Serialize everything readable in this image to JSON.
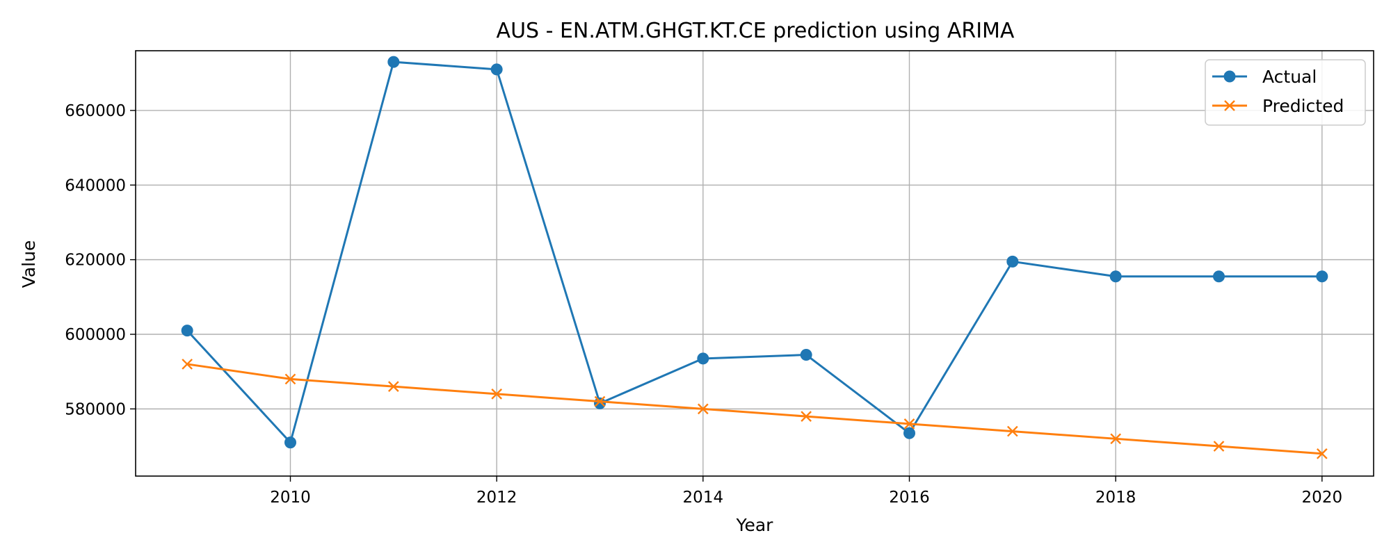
{
  "chart_data": {
    "type": "line",
    "title": "AUS - EN.ATM.GHGT.KT.CE prediction using ARIMA",
    "xlabel": "Year",
    "ylabel": "Value",
    "x": [
      2009,
      2010,
      2011,
      2012,
      2013,
      2014,
      2015,
      2016,
      2017,
      2018,
      2019,
      2020
    ],
    "xlim": [
      2008.5,
      2020.5
    ],
    "ylim": [
      562000,
      676000
    ],
    "x_ticks": [
      "2010",
      "2012",
      "2014",
      "2016",
      "2018",
      "2020"
    ],
    "y_ticks": [
      "580000",
      "600000",
      "620000",
      "640000",
      "660000"
    ],
    "grid": true,
    "legend_position": "top-right",
    "series": [
      {
        "name": "Actual",
        "marker": "circle",
        "color": "#1f77b4",
        "values": [
          601000,
          571000,
          673000,
          671000,
          581500,
          593500,
          594500,
          573500,
          619500,
          615500,
          615500,
          615500
        ]
      },
      {
        "name": "Predicted",
        "marker": "x",
        "color": "#ff7f0e",
        "values": [
          592000,
          588000,
          586000,
          584000,
          582000,
          580000,
          578000,
          576000,
          574000,
          572000,
          570000,
          568000
        ]
      }
    ]
  }
}
